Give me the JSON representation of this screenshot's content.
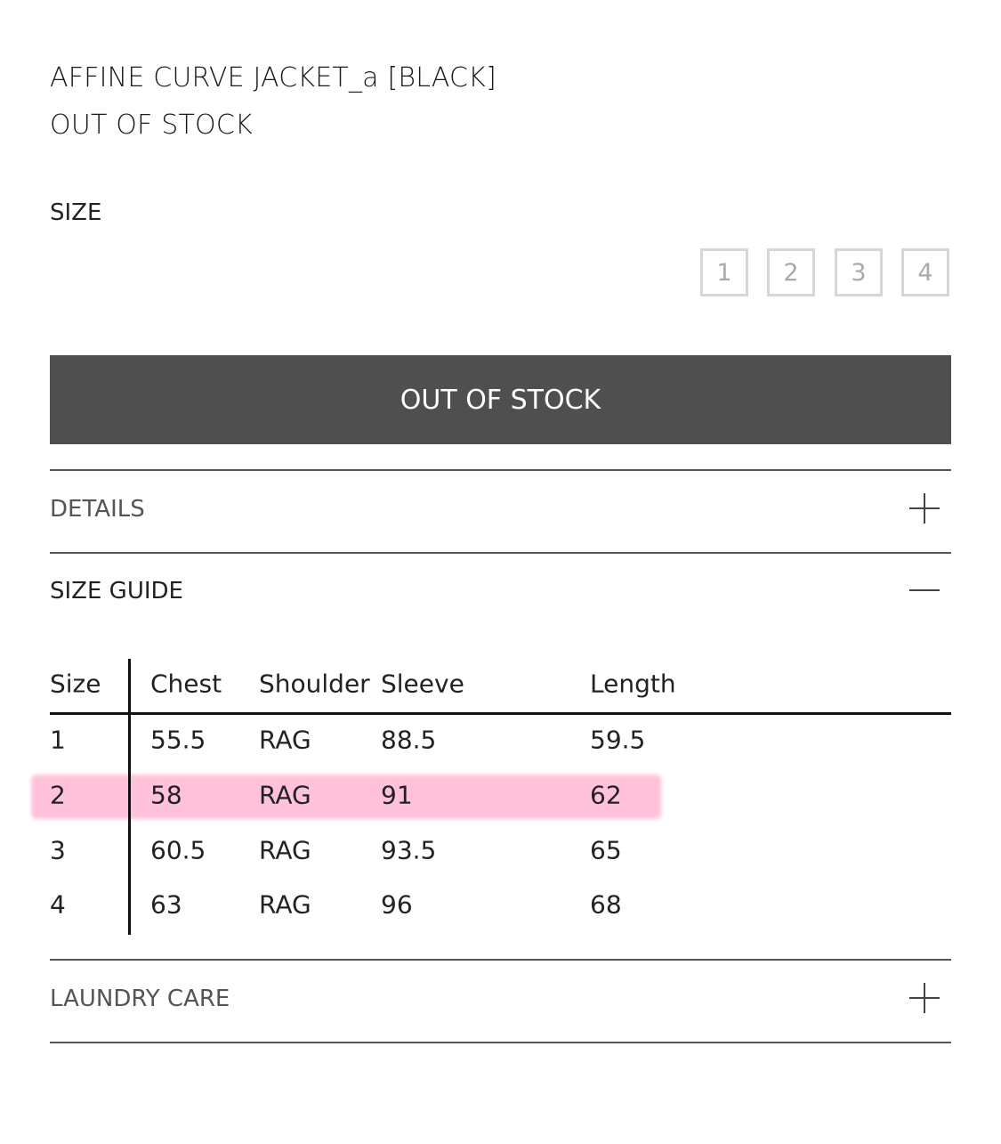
{
  "product": {
    "name": "AFFINE CURVE JACKET_a [BLACK]",
    "status": "OUT OF STOCK"
  },
  "size_selector": {
    "label": "SIZE",
    "options": [
      "1",
      "2",
      "3",
      "4"
    ]
  },
  "buy_button": {
    "label": "OUT OF STOCK"
  },
  "sections": {
    "details": {
      "label": "DETAILS",
      "icon": "plus-icon"
    },
    "size_guide": {
      "label": "SIZE GUIDE",
      "icon": "minus-icon"
    },
    "laundry": {
      "label": "LAUNDRY CARE",
      "icon": "plus-icon"
    }
  },
  "size_table": {
    "headers": [
      "Size",
      "Chest",
      "Shoulder",
      "Sleeve",
      "Length"
    ],
    "rows": [
      [
        "1",
        "55.5",
        "RAG",
        "88.5",
        "59.5"
      ],
      [
        "2",
        "58",
        "RAG",
        "91",
        "62"
      ],
      [
        "3",
        "60.5",
        "RAG",
        "93.5",
        "65"
      ],
      [
        "4",
        "63",
        "RAG",
        "96",
        "68"
      ]
    ],
    "highlight_color": "#ffc2da"
  }
}
